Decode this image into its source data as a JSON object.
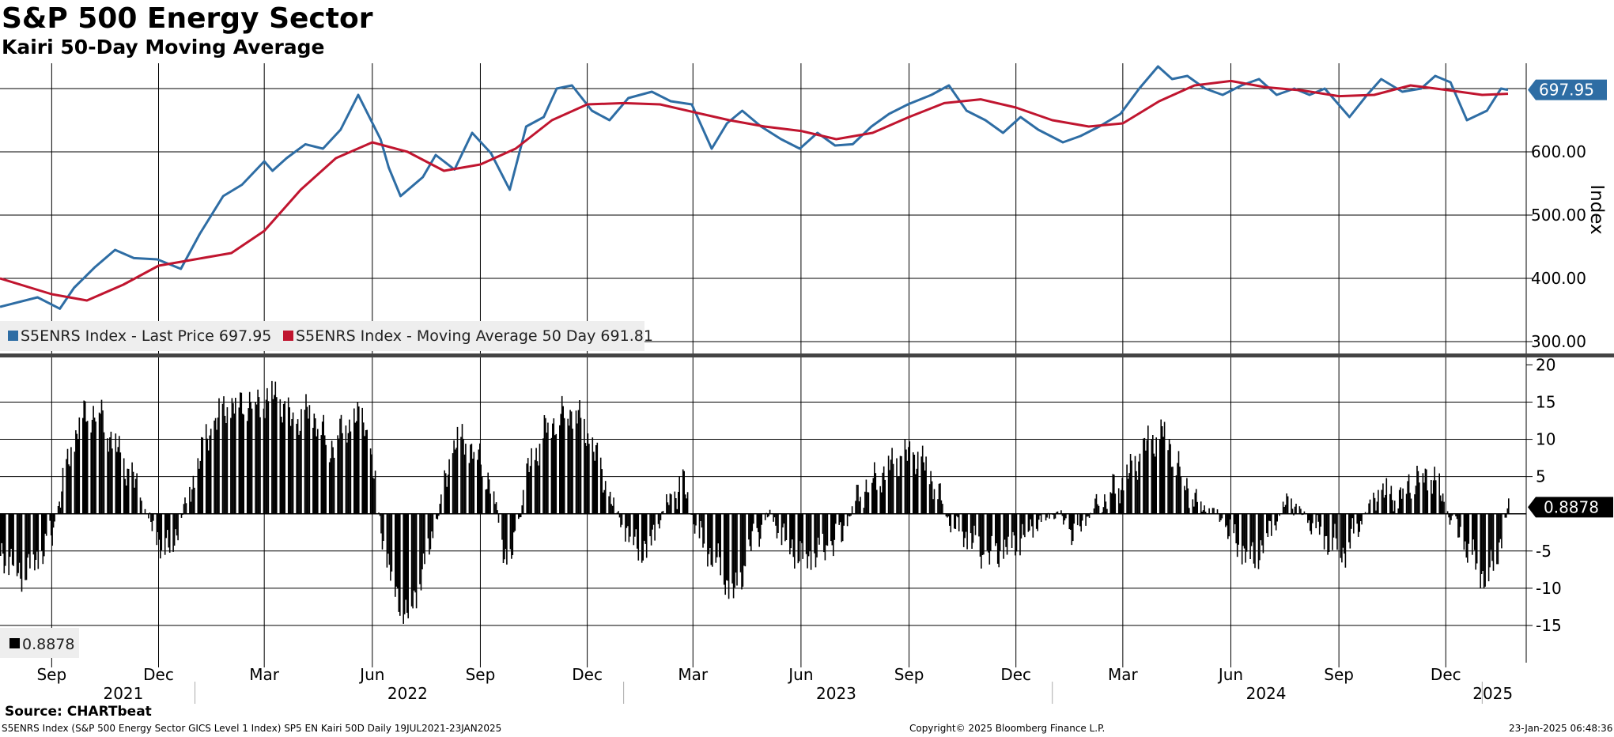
{
  "header": {
    "title": "S&P 500 Energy Sector",
    "subtitle": "Kairi 50-Day Moving Average"
  },
  "footer": {
    "source": "Source: CHARTbeat",
    "description": "S5ENRS Index (S&P 500 Energy Sector GICS Level 1 Index) SP5 EN Kairi 50D  Daily 19JUL2021-23JAN2025",
    "copyright": "Copyright© 2025 Bloomberg Finance L.P.",
    "timestamp": "23-Jan-2025 06:48:36"
  },
  "colors": {
    "price": "#2E6DA4",
    "moving_average": "#C0152F",
    "kairi_bars": "#000000",
    "grid": "#000000",
    "legend_bg": "#EEEEEE"
  },
  "chart_data": [
    {
      "type": "line",
      "panel": "price",
      "ylabel": "Index",
      "ylim": [
        280,
        740
      ],
      "yticks": [
        300,
        400,
        500,
        600
      ],
      "ytick_labels": [
        "300.00",
        "400.00",
        "500.00",
        "600.00"
      ],
      "grid": true,
      "legend_position": "bottom-left",
      "last_value_label": "697.95",
      "x_range": [
        "2021-07-19",
        "2025-01-23"
      ],
      "series": [
        {
          "name": "S5ENRS Index - Last Price 697.95",
          "legend_label": "S5ENRS Index - Last Price 697.95",
          "color": "#2E6DA4",
          "x": [
            "2021-07-19",
            "2021-08-20",
            "2021-09-08",
            "2021-09-20",
            "2021-10-08",
            "2021-10-25",
            "2021-11-10",
            "2021-11-30",
            "2021-12-20",
            "2022-01-05",
            "2022-01-25",
            "2022-02-10",
            "2022-03-01",
            "2022-03-08",
            "2022-03-20",
            "2022-04-05",
            "2022-04-20",
            "2022-05-05",
            "2022-05-20",
            "2022-06-08",
            "2022-06-15",
            "2022-06-25",
            "2022-07-14",
            "2022-07-25",
            "2022-08-10",
            "2022-08-25",
            "2022-09-10",
            "2022-09-26",
            "2022-10-10",
            "2022-10-25",
            "2022-11-05",
            "2022-11-18",
            "2022-12-05",
            "2022-12-20",
            "2023-01-05",
            "2023-01-25",
            "2023-02-10",
            "2023-02-28",
            "2023-03-17",
            "2023-03-30",
            "2023-04-12",
            "2023-04-28",
            "2023-05-15",
            "2023-05-31",
            "2023-06-15",
            "2023-06-30",
            "2023-07-15",
            "2023-07-31",
            "2023-08-15",
            "2023-08-31",
            "2023-09-20",
            "2023-10-05",
            "2023-10-20",
            "2023-11-05",
            "2023-11-20",
            "2023-12-05",
            "2023-12-20",
            "2024-01-10",
            "2024-01-25",
            "2024-02-10",
            "2024-02-28",
            "2024-03-15",
            "2024-03-31",
            "2024-04-12",
            "2024-04-25",
            "2024-05-10",
            "2024-05-25",
            "2024-06-10",
            "2024-06-25",
            "2024-07-10",
            "2024-07-25",
            "2024-08-07",
            "2024-08-20",
            "2024-09-10",
            "2024-09-25",
            "2024-10-07",
            "2024-10-25",
            "2024-11-10",
            "2024-11-22",
            "2024-12-05",
            "2024-12-19",
            "2025-01-05",
            "2025-01-17",
            "2025-01-23"
          ],
          "values": [
            355,
            370,
            352,
            385,
            418,
            445,
            432,
            430,
            415,
            470,
            530,
            548,
            585,
            570,
            590,
            612,
            605,
            635,
            690,
            620,
            575,
            530,
            560,
            595,
            572,
            630,
            598,
            540,
            640,
            655,
            700,
            705,
            665,
            650,
            685,
            695,
            680,
            675,
            605,
            645,
            665,
            640,
            620,
            605,
            630,
            610,
            612,
            640,
            660,
            675,
            690,
            705,
            665,
            650,
            630,
            655,
            635,
            615,
            625,
            640,
            660,
            700,
            735,
            715,
            720,
            700,
            690,
            705,
            715,
            690,
            700,
            690,
            700,
            655,
            690,
            715,
            695,
            700,
            720,
            710,
            650,
            665,
            700,
            697.95
          ]
        },
        {
          "name": "S5ENRS Index - Moving Average 50 Day 691.81",
          "legend_label": "S5ENRS Index - Moving Average 50 Day 691.81",
          "color": "#C0152F",
          "x": [
            "2021-07-19",
            "2021-09-01",
            "2021-10-01",
            "2021-11-01",
            "2021-12-01",
            "2022-01-01",
            "2022-02-01",
            "2022-03-01",
            "2022-04-01",
            "2022-05-01",
            "2022-06-01",
            "2022-07-01",
            "2022-08-01",
            "2022-09-01",
            "2022-10-01",
            "2022-11-01",
            "2022-12-01",
            "2023-01-01",
            "2023-02-01",
            "2023-03-01",
            "2023-04-01",
            "2023-05-01",
            "2023-06-01",
            "2023-07-01",
            "2023-08-01",
            "2023-09-01",
            "2023-10-01",
            "2023-11-01",
            "2023-12-01",
            "2024-01-01",
            "2024-02-01",
            "2024-03-01",
            "2024-04-01",
            "2024-05-01",
            "2024-06-01",
            "2024-07-01",
            "2024-08-01",
            "2024-09-01",
            "2024-10-01",
            "2024-11-01",
            "2024-12-01",
            "2025-01-01",
            "2025-01-23"
          ],
          "values": [
            400,
            375,
            365,
            390,
            420,
            430,
            440,
            475,
            540,
            590,
            615,
            600,
            570,
            580,
            605,
            650,
            675,
            677,
            675,
            663,
            650,
            640,
            633,
            620,
            630,
            655,
            677,
            683,
            670,
            650,
            640,
            645,
            680,
            705,
            712,
            702,
            697,
            688,
            690,
            705,
            698,
            690,
            691.81
          ]
        }
      ]
    },
    {
      "type": "bar",
      "panel": "kairi",
      "ylim": [
        -20,
        21
      ],
      "yticks": [
        -15,
        -10,
        -5,
        5,
        10,
        15,
        20
      ],
      "ytick_labels": [
        "-15",
        "-10",
        "-5",
        "5",
        "10",
        "15",
        "20"
      ],
      "grid": true,
      "legend_position": "bottom-left",
      "last_value_label": "0.8878",
      "series": [
        {
          "name": "0.8878",
          "legend_label": "0.8878",
          "color": "#000000",
          "x": [
            "2021-07-19",
            "2021-08-05",
            "2021-08-20",
            "2021-09-01",
            "2021-09-10",
            "2021-09-25",
            "2021-10-10",
            "2021-10-25",
            "2021-11-10",
            "2021-11-25",
            "2021-12-10",
            "2021-12-25",
            "2022-01-10",
            "2022-01-25",
            "2022-02-10",
            "2022-02-25",
            "2022-03-10",
            "2022-03-25",
            "2022-04-10",
            "2022-04-25",
            "2022-05-10",
            "2022-05-25",
            "2022-06-05",
            "2022-06-15",
            "2022-06-30",
            "2022-07-15",
            "2022-07-30",
            "2022-08-10",
            "2022-08-25",
            "2022-09-10",
            "2022-09-25",
            "2022-10-10",
            "2022-10-25",
            "2022-11-05",
            "2022-11-20",
            "2022-12-05",
            "2022-12-20",
            "2023-01-05",
            "2023-01-20",
            "2023-02-05",
            "2023-02-20",
            "2023-03-05",
            "2023-03-20",
            "2023-04-05",
            "2023-04-20",
            "2023-05-05",
            "2023-05-20",
            "2023-06-05",
            "2023-06-20",
            "2023-07-05",
            "2023-07-20",
            "2023-08-05",
            "2023-08-20",
            "2023-09-05",
            "2023-09-20",
            "2023-10-05",
            "2023-10-20",
            "2023-11-05",
            "2023-11-20",
            "2023-12-05",
            "2023-12-20",
            "2024-01-05",
            "2024-01-20",
            "2024-02-05",
            "2024-02-20",
            "2024-03-05",
            "2024-03-20",
            "2024-04-05",
            "2024-04-20",
            "2024-05-05",
            "2024-05-20",
            "2024-06-05",
            "2024-06-20",
            "2024-07-05",
            "2024-07-20",
            "2024-08-05",
            "2024-08-20",
            "2024-09-05",
            "2024-09-20",
            "2024-10-05",
            "2024-10-20",
            "2024-11-05",
            "2024-11-20",
            "2024-12-05",
            "2024-12-20",
            "2025-01-05",
            "2025-01-15",
            "2025-01-23"
          ],
          "values": [
            -5,
            -8,
            -6,
            -3,
            4,
            13,
            14,
            9,
            4,
            -2,
            -5,
            2,
            10,
            14,
            15,
            15,
            16,
            12,
            14,
            9,
            12,
            13,
            1,
            -8,
            -14,
            -7,
            2,
            10,
            9,
            4,
            -8,
            5,
            11,
            13,
            14,
            9,
            2,
            -3,
            -5,
            1,
            4,
            -3,
            -6,
            -11,
            -4,
            0,
            -4,
            -6,
            -5,
            -3,
            3,
            5,
            7,
            8,
            5,
            -1,
            -3,
            -6,
            -5,
            -3,
            -1,
            0,
            -3,
            1,
            3,
            5,
            9,
            11,
            5,
            1,
            0,
            -4,
            -6,
            -2,
            2,
            -1,
            -3,
            -5,
            -1,
            3,
            2,
            5,
            5,
            -1,
            -5,
            -9,
            -4,
            0.8878
          ]
        }
      ]
    }
  ],
  "x_axis": {
    "month_ticks": [
      "Sep",
      "Dec",
      "Mar",
      "Jun",
      "Sep",
      "Dec",
      "Mar",
      "Jun",
      "Sep",
      "Dec",
      "Mar",
      "Jun",
      "Sep",
      "Dec"
    ],
    "month_dates": [
      "2021-09-01",
      "2021-12-01",
      "2022-03-01",
      "2022-06-01",
      "2022-09-01",
      "2022-12-01",
      "2023-03-01",
      "2023-06-01",
      "2023-09-01",
      "2023-12-01",
      "2024-03-01",
      "2024-06-01",
      "2024-09-01",
      "2024-12-01"
    ],
    "year_labels": [
      "2021",
      "2022",
      "2023",
      "2024",
      "2025"
    ],
    "year_dates": [
      "2021-11-01",
      "2022-07-01",
      "2023-07-01",
      "2024-07-01",
      "2025-01-10"
    ]
  }
}
